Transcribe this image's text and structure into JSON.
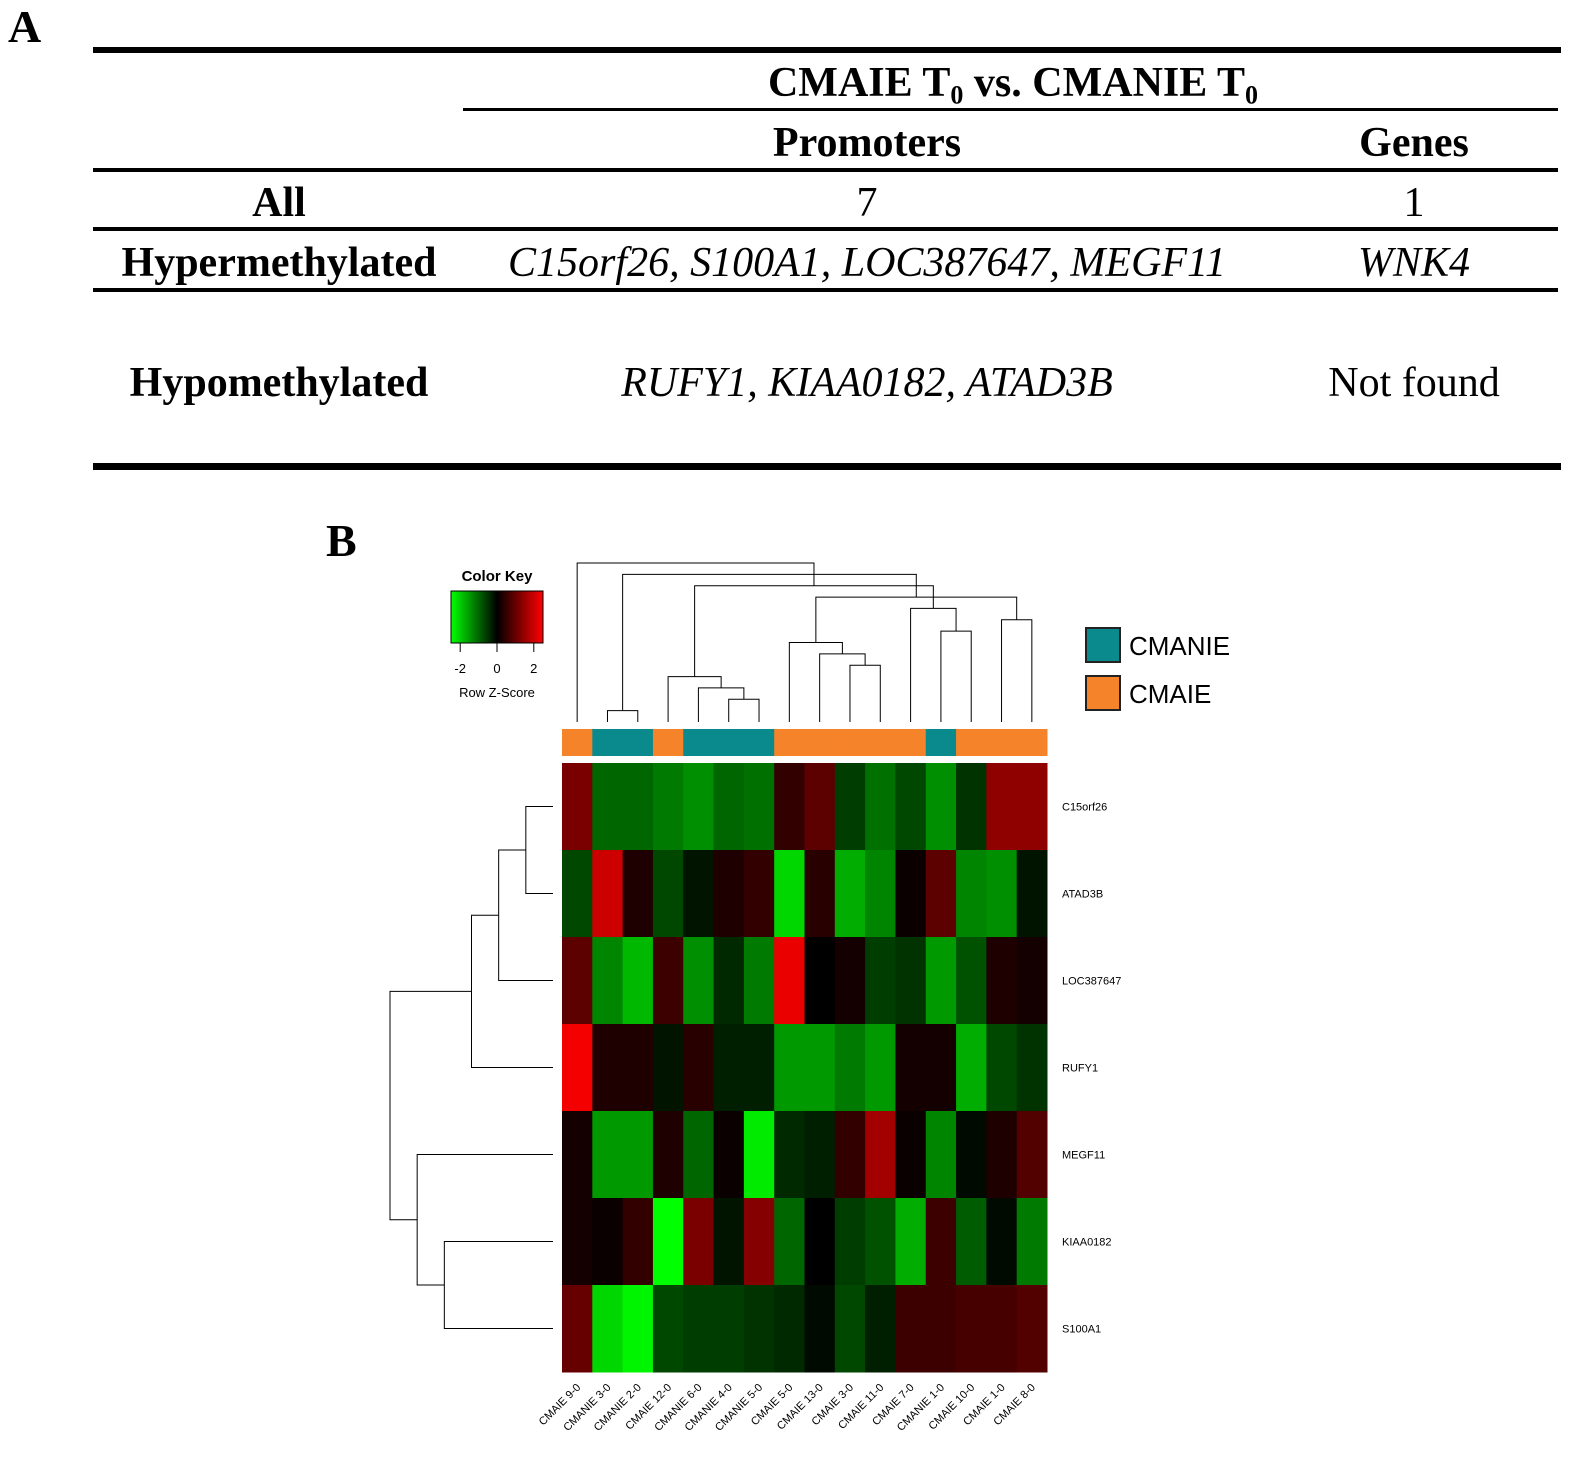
{
  "panel_a": {
    "letter": "A",
    "comparison": {
      "part1": "CMAIE T",
      "sub1": "0",
      "part2": " vs. CMANIE T",
      "sub2": "0"
    },
    "headers": {
      "promoters": "Promoters",
      "genes": "Genes"
    },
    "rows": [
      {
        "label": "All",
        "promoters": "7",
        "genes": "1"
      },
      {
        "label": "Hypermethylated",
        "promoters": "C15orf26, S100A1, LOC387647, MEGF11",
        "genes": "WNK4"
      },
      {
        "label": "Hypomethylated",
        "promoters": "RUFY1, KIAA0182, ATAD3B",
        "genes": "Not found"
      }
    ]
  },
  "panel_b": {
    "letter": "B",
    "color_key": {
      "title": "Color Key",
      "ticks": [
        "-2",
        "0",
        "2"
      ],
      "xlabel": "Row Z-Score",
      "low_color": "#00ff00",
      "mid_color": "#000000",
      "high_color": "#ff0000"
    },
    "legend": [
      {
        "label": "CMANIE",
        "color": "#0a8a8c"
      },
      {
        "label": "CMAIE",
        "color": "#f5832a"
      }
    ]
  },
  "chart_data": {
    "type": "heatmap",
    "columns": [
      "CMAIE 9-0",
      "CMANIE 3-0",
      "CMANIE 2-0",
      "CMAIE 12-0",
      "CMANIE 6-0",
      "CMANIE 4-0",
      "CMANIE 5-0",
      "CMAIE 5-0",
      "CMAIE 13-0",
      "CMAIE 3-0",
      "CMAIE 11-0",
      "CMAIE 7-0",
      "CMANIE 1-0",
      "CMAIE 10-0",
      "CMAIE 1-0",
      "CMAIE 8-0"
    ],
    "column_groups": [
      "CMAIE",
      "CMANIE",
      "CMANIE",
      "CMAIE",
      "CMANIE",
      "CMANIE",
      "CMANIE",
      "CMAIE",
      "CMAIE",
      "CMAIE",
      "CMAIE",
      "CMAIE",
      "CMANIE",
      "CMAIE",
      "CMAIE",
      "CMAIE"
    ],
    "rows": [
      "C15orf26",
      "ATAD3B",
      "LOC387647",
      "RUFY1",
      "MEGF11",
      "KIAA0182",
      "S100A1"
    ],
    "values": [
      [
        1.2,
        -1.0,
        -1.0,
        -1.2,
        -1.4,
        -1.0,
        -1.1,
        0.5,
        0.9,
        -0.6,
        -1.1,
        -0.7,
        -1.4,
        -0.5,
        1.4,
        1.4
      ],
      [
        -0.7,
        2.0,
        0.3,
        -0.7,
        -0.2,
        0.3,
        0.5,
        -2.1,
        0.4,
        -1.7,
        -1.3,
        0.1,
        0.9,
        -1.3,
        -1.4,
        -0.2
      ],
      [
        0.9,
        -1.3,
        -1.8,
        0.6,
        -1.4,
        -0.4,
        -1.2,
        2.3,
        0.0,
        0.2,
        -0.6,
        -0.5,
        -1.5,
        -0.8,
        0.3,
        0.2
      ],
      [
        2.4,
        0.3,
        0.3,
        -0.2,
        0.4,
        -0.3,
        -0.3,
        -1.5,
        -1.5,
        -1.2,
        -1.5,
        0.2,
        0.2,
        -1.7,
        -0.7,
        -0.5
      ],
      [
        0.2,
        -1.5,
        -1.5,
        0.3,
        -1.0,
        0.1,
        -2.3,
        -0.4,
        -0.3,
        0.5,
        1.6,
        0.1,
        -1.3,
        -0.1,
        0.3,
        0.8
      ],
      [
        0.2,
        0.1,
        0.5,
        -2.5,
        1.2,
        -0.2,
        1.3,
        -1.0,
        0.0,
        -0.6,
        -0.8,
        -1.7,
        0.6,
        -0.9,
        -0.1,
        -1.2
      ],
      [
        1.0,
        -2.1,
        -2.4,
        -0.7,
        -0.6,
        -0.6,
        -0.5,
        -0.4,
        -0.1,
        -0.7,
        -0.3,
        0.6,
        0.6,
        0.7,
        0.7,
        0.8
      ]
    ],
    "zlim": [
      -2.5,
      2.5
    ],
    "col_dendrogram": [
      [
        1,
        2
      ],
      [
        5,
        6
      ],
      [
        4,
        17
      ],
      [
        3,
        18
      ],
      [
        9,
        10
      ],
      [
        8,
        20
      ],
      [
        7,
        21
      ],
      [
        12,
        13
      ],
      [
        14,
        15
      ],
      [
        11,
        23
      ],
      [
        22,
        24
      ],
      [
        19,
        25
      ],
      [
        16,
        26
      ],
      [
        0,
        27
      ]
    ],
    "row_dendrogram": [
      [
        0,
        1
      ],
      [
        7,
        2
      ],
      [
        8,
        3
      ],
      [
        5,
        6
      ],
      [
        4,
        10
      ],
      [
        9,
        11
      ]
    ]
  }
}
